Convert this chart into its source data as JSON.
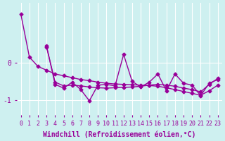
{
  "x": [
    0,
    1,
    2,
    3,
    4,
    5,
    6,
    7,
    8,
    9,
    10,
    11,
    12,
    13,
    14,
    15,
    16,
    17,
    18,
    19,
    20,
    21,
    22,
    23
  ],
  "line1": [
    1.3,
    0.15,
    null,
    null,
    null,
    null,
    null,
    null,
    null,
    null,
    null,
    null,
    null,
    null,
    null,
    null,
    null,
    null,
    null,
    null,
    null,
    null,
    null,
    null
  ],
  "line2_smooth": [
    1.3,
    0.15,
    -0.1,
    -0.2,
    -0.3,
    -0.35,
    -0.4,
    -0.45,
    -0.48,
    -0.52,
    -0.55,
    -0.57,
    -0.58,
    -0.59,
    -0.6,
    -0.61,
    -0.63,
    -0.67,
    -0.72,
    -0.77,
    -0.82,
    -0.87,
    -0.75,
    -0.6
  ],
  "line3_noisy": [
    null,
    null,
    null,
    0.45,
    -0.58,
    -0.68,
    -0.52,
    -0.72,
    -1.02,
    -0.6,
    -0.58,
    -0.62,
    0.22,
    -0.5,
    -0.65,
    -0.52,
    -0.3,
    -0.75,
    -0.3,
    -0.55,
    -0.6,
    -0.88,
    -0.55,
    -0.45
  ],
  "line4_smooth2": [
    null,
    null,
    null,
    0.42,
    -0.52,
    -0.62,
    -0.6,
    -0.62,
    -0.65,
    -0.67,
    -0.68,
    -0.67,
    -0.66,
    -0.65,
    -0.63,
    -0.6,
    -0.58,
    -0.6,
    -0.63,
    -0.68,
    -0.72,
    -0.78,
    -0.58,
    -0.42
  ],
  "background_color": "#cef0f0",
  "line_color": "#990099",
  "grid_color": "#ffffff",
  "xlabel": "Windchill (Refroidissement éolien,°C)",
  "ylabel": "",
  "yticks": [
    0,
    -1
  ],
  "xtick_labels": [
    "0",
    "1",
    "2",
    "3",
    "4",
    "5",
    "6",
    "7",
    "8",
    "9",
    "10",
    "11",
    "12",
    "13",
    "14",
    "15",
    "16",
    "17",
    "18",
    "19",
    "20",
    "21",
    "22",
    "23"
  ],
  "figsize": [
    3.2,
    2.0
  ],
  "dpi": 100,
  "title_fontsize": 8,
  "xlabel_fontsize": 7,
  "tick_fontsize": 6,
  "line_width": 1.0,
  "marker": "D",
  "marker_size": 2.5
}
